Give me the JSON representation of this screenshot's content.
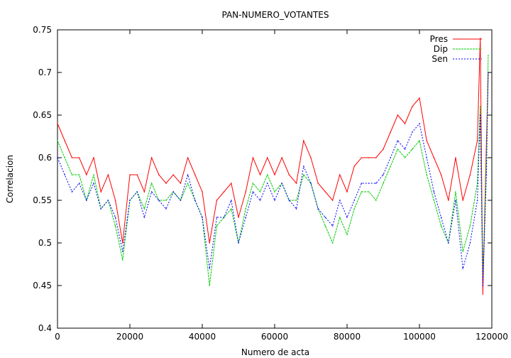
{
  "chart_data": {
    "type": "line",
    "title": "PAN-NUMERO_VOTANTES",
    "xlabel": "Numero de acta",
    "ylabel": "Correlacion",
    "xlim": [
      0,
      120000
    ],
    "ylim": [
      0.4,
      0.75
    ],
    "xticks": [
      0,
      20000,
      40000,
      60000,
      80000,
      100000,
      120000
    ],
    "xtick_labels": [
      "0",
      "20000",
      "40000",
      "60000",
      "80000",
      "100000",
      "120000"
    ],
    "yticks": [
      0.4,
      0.45,
      0.5,
      0.55,
      0.6,
      0.65,
      0.7,
      0.75
    ],
    "ytick_labels": [
      "0.4",
      "0.45",
      "0.5",
      "0.55",
      "0.6",
      "0.65",
      "0.7",
      "0.75"
    ],
    "grid": false,
    "legend_position": "top-right",
    "series": [
      {
        "name": "Pres",
        "color": "#ff0000",
        "x": [
          0,
          2000,
          4000,
          6000,
          8000,
          10000,
          12000,
          14000,
          16000,
          18000,
          20000,
          22000,
          24000,
          26000,
          28000,
          30000,
          32000,
          34000,
          36000,
          38000,
          40000,
          42000,
          44000,
          46000,
          48000,
          50000,
          52000,
          54000,
          56000,
          58000,
          60000,
          62000,
          64000,
          66000,
          68000,
          70000,
          72000,
          74000,
          76000,
          78000,
          80000,
          82000,
          84000,
          86000,
          88000,
          90000,
          92000,
          94000,
          96000,
          98000,
          100000,
          102000,
          104000,
          106000,
          108000,
          110000,
          112000,
          114000,
          116000,
          116800,
          117500,
          118500,
          119000
        ],
        "values": [
          0.64,
          0.62,
          0.6,
          0.6,
          0.58,
          0.6,
          0.56,
          0.58,
          0.55,
          0.5,
          0.58,
          0.58,
          0.56,
          0.6,
          0.58,
          0.57,
          0.58,
          0.57,
          0.6,
          0.58,
          0.56,
          0.5,
          0.55,
          0.56,
          0.57,
          0.53,
          0.56,
          0.6,
          0.58,
          0.6,
          0.58,
          0.6,
          0.58,
          0.57,
          0.62,
          0.6,
          0.57,
          0.56,
          0.55,
          0.58,
          0.56,
          0.59,
          0.6,
          0.6,
          0.6,
          0.61,
          0.63,
          0.65,
          0.64,
          0.66,
          0.67,
          0.62,
          0.6,
          0.58,
          0.55,
          0.6,
          0.55,
          0.58,
          0.62,
          0.74,
          0.44,
          0.62,
          0.7
        ]
      },
      {
        "name": "Dip",
        "color": "#00cc00",
        "x": [
          0,
          2000,
          4000,
          6000,
          8000,
          10000,
          12000,
          14000,
          16000,
          18000,
          20000,
          22000,
          24000,
          26000,
          28000,
          30000,
          32000,
          34000,
          36000,
          38000,
          40000,
          42000,
          44000,
          46000,
          48000,
          50000,
          52000,
          54000,
          56000,
          58000,
          60000,
          62000,
          64000,
          66000,
          68000,
          70000,
          72000,
          74000,
          76000,
          78000,
          80000,
          82000,
          84000,
          86000,
          88000,
          90000,
          92000,
          94000,
          96000,
          98000,
          100000,
          102000,
          104000,
          106000,
          108000,
          110000,
          112000,
          114000,
          116000,
          116800,
          117500,
          118500,
          119000
        ],
        "values": [
          0.62,
          0.6,
          0.58,
          0.58,
          0.55,
          0.58,
          0.54,
          0.55,
          0.52,
          0.48,
          0.55,
          0.56,
          0.54,
          0.57,
          0.55,
          0.55,
          0.56,
          0.55,
          0.57,
          0.55,
          0.53,
          0.45,
          0.52,
          0.53,
          0.54,
          0.5,
          0.54,
          0.57,
          0.56,
          0.58,
          0.56,
          0.57,
          0.55,
          0.55,
          0.58,
          0.57,
          0.54,
          0.52,
          0.5,
          0.53,
          0.51,
          0.54,
          0.56,
          0.56,
          0.55,
          0.57,
          0.59,
          0.61,
          0.6,
          0.61,
          0.62,
          0.58,
          0.55,
          0.52,
          0.5,
          0.56,
          0.49,
          0.52,
          0.57,
          0.66,
          0.46,
          0.6,
          0.72
        ]
      },
      {
        "name": "Sen",
        "color": "#0000ff",
        "x": [
          0,
          2000,
          4000,
          6000,
          8000,
          10000,
          12000,
          14000,
          16000,
          18000,
          20000,
          22000,
          24000,
          26000,
          28000,
          30000,
          32000,
          34000,
          36000,
          38000,
          40000,
          42000,
          44000,
          46000,
          48000,
          50000,
          52000,
          54000,
          56000,
          58000,
          60000,
          62000,
          64000,
          66000,
          68000,
          70000,
          72000,
          74000,
          76000,
          78000,
          80000,
          82000,
          84000,
          86000,
          88000,
          90000,
          92000,
          94000,
          96000,
          98000,
          100000,
          102000,
          104000,
          106000,
          108000,
          110000,
          112000,
          114000,
          116000,
          116800,
          117500,
          118500,
          119000
        ],
        "values": [
          0.6,
          0.58,
          0.56,
          0.57,
          0.55,
          0.57,
          0.54,
          0.55,
          0.53,
          0.49,
          0.55,
          0.56,
          0.53,
          0.56,
          0.55,
          0.54,
          0.56,
          0.55,
          0.58,
          0.55,
          0.53,
          0.47,
          0.53,
          0.53,
          0.55,
          0.5,
          0.53,
          0.56,
          0.55,
          0.57,
          0.55,
          0.57,
          0.55,
          0.54,
          0.59,
          0.57,
          0.54,
          0.53,
          0.52,
          0.55,
          0.53,
          0.55,
          0.57,
          0.57,
          0.57,
          0.58,
          0.6,
          0.62,
          0.61,
          0.63,
          0.64,
          0.6,
          0.56,
          0.53,
          0.5,
          0.55,
          0.47,
          0.5,
          0.55,
          0.65,
          0.45,
          0.58,
          0.7
        ]
      }
    ]
  }
}
